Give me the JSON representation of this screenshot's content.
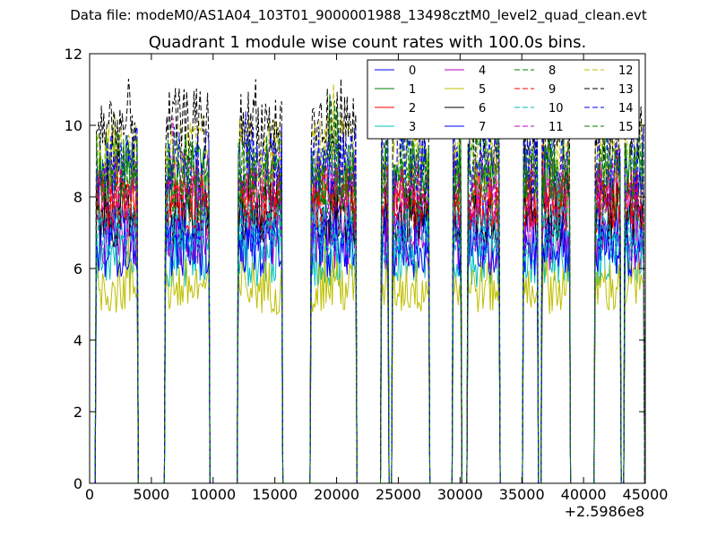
{
  "figure": {
    "suptitle": "Data file: modeM0/AS1A04_103T01_9000001988_13498cztM0_level2_quad_clean.evt"
  },
  "chart_data": {
    "type": "line",
    "title": "Quadrant 1 module wise count rates with 100.0s bins.",
    "xlabel": "",
    "ylabel": "",
    "xlim": [
      0,
      45000
    ],
    "ylim": [
      0,
      12
    ],
    "x_offset_label": "+2.5986e8",
    "grid": false,
    "legend_position": "top-right",
    "legend_columns": 4,
    "x_ticks": [
      0,
      5000,
      10000,
      15000,
      20000,
      25000,
      30000,
      35000,
      40000,
      45000
    ],
    "x_tick_labels": [
      "0",
      "5000",
      "10000",
      "15000",
      "20000",
      "25000",
      "30000",
      "35000",
      "40000",
      "45000"
    ],
    "y_ticks": [
      0,
      2,
      4,
      6,
      8,
      10,
      12
    ],
    "y_tick_labels": [
      "0",
      "2",
      "4",
      "6",
      "8",
      "10",
      "12"
    ],
    "bin_width": 100,
    "good_time_intervals": [
      [
        550,
        3950
      ],
      [
        6150,
        9700
      ],
      [
        12050,
        15600
      ],
      [
        17950,
        21600
      ],
      [
        23650,
        24200
      ],
      [
        24550,
        27500
      ],
      [
        29450,
        30150
      ],
      [
        30650,
        33250
      ],
      [
        35150,
        36300
      ],
      [
        36600,
        38950
      ],
      [
        40950,
        43050
      ],
      [
        43300,
        44950
      ]
    ],
    "series": [
      {
        "name": "0",
        "mean": 7.2,
        "color": "#0000ff",
        "dash": "solid"
      },
      {
        "name": "1",
        "mean": 8.6,
        "color": "#008000",
        "dash": "solid"
      },
      {
        "name": "2",
        "mean": 7.8,
        "color": "#ff0000",
        "dash": "solid"
      },
      {
        "name": "3",
        "mean": 6.3,
        "color": "#00bfbf",
        "dash": "solid"
      },
      {
        "name": "4",
        "mean": 6.8,
        "color": "#bf00bf",
        "dash": "solid"
      },
      {
        "name": "5",
        "mean": 5.5,
        "color": "#bfbf00",
        "dash": "solid"
      },
      {
        "name": "6",
        "mean": 7.5,
        "color": "#000000",
        "dash": "solid"
      },
      {
        "name": "7",
        "mean": 6.6,
        "color": "#0000ff",
        "dash": "solid"
      },
      {
        "name": "8",
        "mean": 8.2,
        "color": "#008000",
        "dash": "dashed"
      },
      {
        "name": "9",
        "mean": 8.0,
        "color": "#ff0000",
        "dash": "dashed"
      },
      {
        "name": "10",
        "mean": 7.0,
        "color": "#00bfbf",
        "dash": "dashed"
      },
      {
        "name": "11",
        "mean": 8.4,
        "color": "#bf00bf",
        "dash": "dashed"
      },
      {
        "name": "12",
        "mean": 9.3,
        "color": "#bfbf00",
        "dash": "dashed"
      },
      {
        "name": "13",
        "mean": 10.0,
        "color": "#000000",
        "dash": "dashed"
      },
      {
        "name": "14",
        "mean": 9.0,
        "color": "#0000ff",
        "dash": "dashed"
      },
      {
        "name": "15",
        "mean": 8.8,
        "color": "#008000",
        "dash": "dashed"
      }
    ]
  }
}
